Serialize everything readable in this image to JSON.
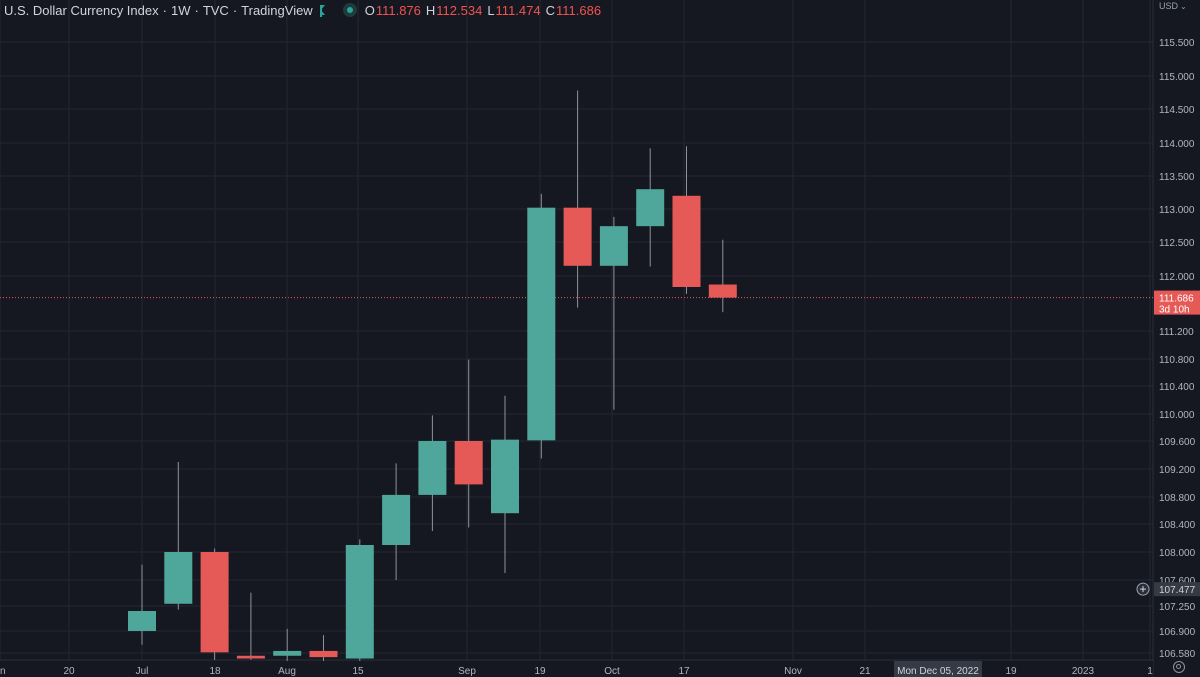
{
  "header": {
    "symbol": "U.S. Dollar Currency Index",
    "interval": "1W",
    "exchange": "TVC",
    "source": "TradingView",
    "open_label": "O",
    "open": "111.876",
    "high_label": "H",
    "high": "112.534",
    "low_label": "L",
    "low": "111.474",
    "close_label": "C",
    "close": "111.686"
  },
  "currency": "USD",
  "colors": {
    "up": "#4fa79b",
    "down": "#e55a56",
    "background": "#161821",
    "grid": "#242733"
  },
  "chart_data": {
    "type": "candlestick",
    "y_axis_labels": [
      "115.500",
      "115.000",
      "114.500",
      "114.000",
      "113.500",
      "113.000",
      "112.500",
      "112.000",
      "111.200",
      "110.800",
      "110.400",
      "110.000",
      "109.600",
      "109.200",
      "108.800",
      "108.400",
      "108.000",
      "107.600",
      "107.250",
      "106.900",
      "106.580"
    ],
    "x_axis_labels": [
      "n",
      "20",
      "Jul",
      "18",
      "Aug",
      "15",
      "Sep",
      "19",
      "Oct",
      "17",
      "Nov",
      "21",
      "19",
      "2023",
      "1"
    ],
    "crosshair_date": "Mon Dec 05, 2022",
    "last_price": "111.686",
    "countdown": "3d 10h",
    "crosshair_price": "107.477",
    "candles": [
      {
        "week": "Jul 4",
        "open": 106.9,
        "high": 107.82,
        "low": 106.7,
        "close": 107.18
      },
      {
        "week": "Jul 11",
        "open": 107.28,
        "high": 109.3,
        "low": 107.2,
        "close": 108.0
      },
      {
        "week": "Jul 18",
        "open": 108.0,
        "high": 108.05,
        "low": 106.48,
        "close": 106.59
      },
      {
        "week": "Jul 25",
        "open": 106.54,
        "high": 107.43,
        "low": 106.48,
        "close": 106.5
      },
      {
        "week": "Aug 1",
        "open": 106.54,
        "high": 106.93,
        "low": 106.4,
        "close": 106.61
      },
      {
        "week": "Aug 8",
        "open": 106.61,
        "high": 106.84,
        "low": 106.4,
        "close": 106.52
      },
      {
        "week": "Aug 15",
        "open": 106.5,
        "high": 108.18,
        "low": 106.4,
        "close": 108.1
      },
      {
        "week": "Aug 22",
        "open": 108.1,
        "high": 109.28,
        "low": 107.6,
        "close": 108.83
      },
      {
        "week": "Aug 29",
        "open": 108.83,
        "high": 109.98,
        "low": 108.3,
        "close": 109.6
      },
      {
        "week": "Sep 5",
        "open": 109.6,
        "high": 110.79,
        "low": 108.35,
        "close": 108.98
      },
      {
        "week": "Sep 12",
        "open": 108.56,
        "high": 110.26,
        "low": 107.7,
        "close": 109.62
      },
      {
        "week": "Sep 19",
        "open": 109.61,
        "high": 113.23,
        "low": 109.35,
        "close": 113.02
      },
      {
        "week": "Sep 26",
        "open": 113.02,
        "high": 114.78,
        "low": 111.54,
        "close": 112.15
      },
      {
        "week": "Oct 3",
        "open": 112.15,
        "high": 112.88,
        "low": 110.06,
        "close": 112.74
      },
      {
        "week": "Oct 10",
        "open": 112.74,
        "high": 113.92,
        "low": 112.14,
        "close": 113.3
      },
      {
        "week": "Oct 17",
        "open": 113.2,
        "high": 113.95,
        "low": 111.74,
        "close": 111.84
      },
      {
        "week": "Oct 24",
        "open": 111.876,
        "high": 112.534,
        "low": 111.474,
        "close": 111.686
      }
    ]
  }
}
